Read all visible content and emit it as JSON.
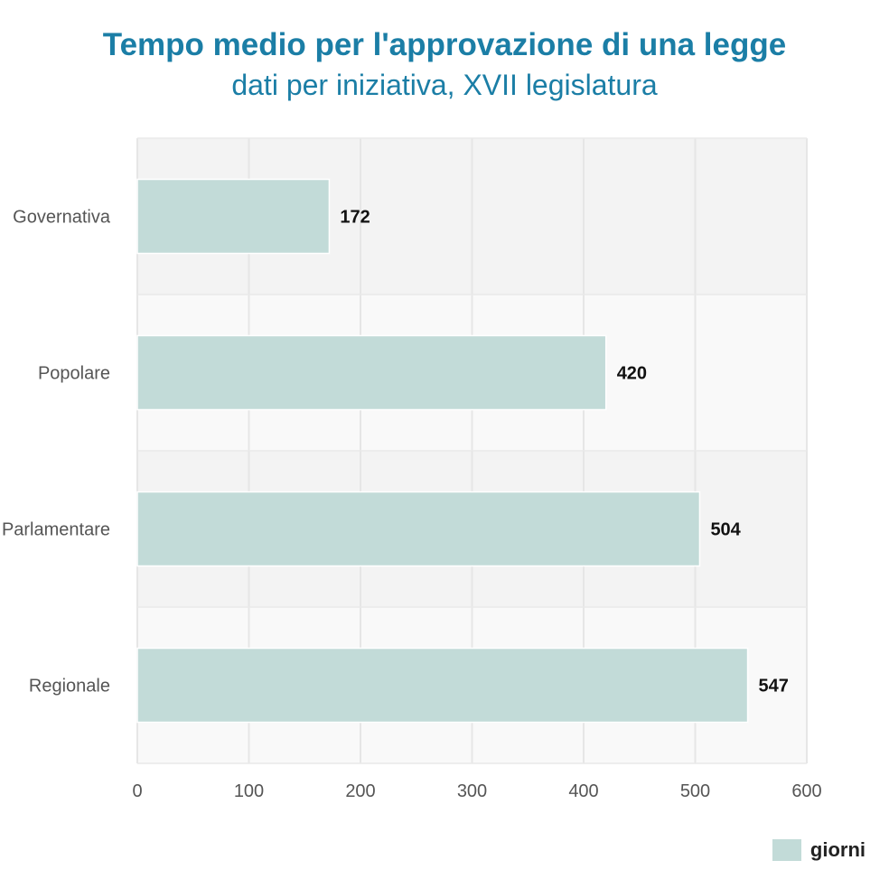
{
  "chart_data": {
    "type": "bar",
    "orientation": "horizontal",
    "title": "Tempo medio per l'approvazione di una legge",
    "subtitle": "dati per iniziativa, XVII legislatura",
    "categories": [
      "Governativa",
      "Popolare",
      "Parlamentare",
      "Regionale"
    ],
    "series": [
      {
        "name": "giorni",
        "values": [
          172,
          420,
          504,
          547
        ]
      }
    ],
    "xlim": [
      0,
      600
    ],
    "x_ticks": [
      0,
      100,
      200,
      300,
      400,
      500,
      600
    ],
    "grid": true,
    "legend_position": "bottom-right",
    "colors": {
      "bar": "#c2dbd8",
      "title": "#1b7ea6",
      "band_dark": "#f3f3f3",
      "band_light": "#f9f9f9",
      "grid": "#e6e6e6"
    }
  }
}
